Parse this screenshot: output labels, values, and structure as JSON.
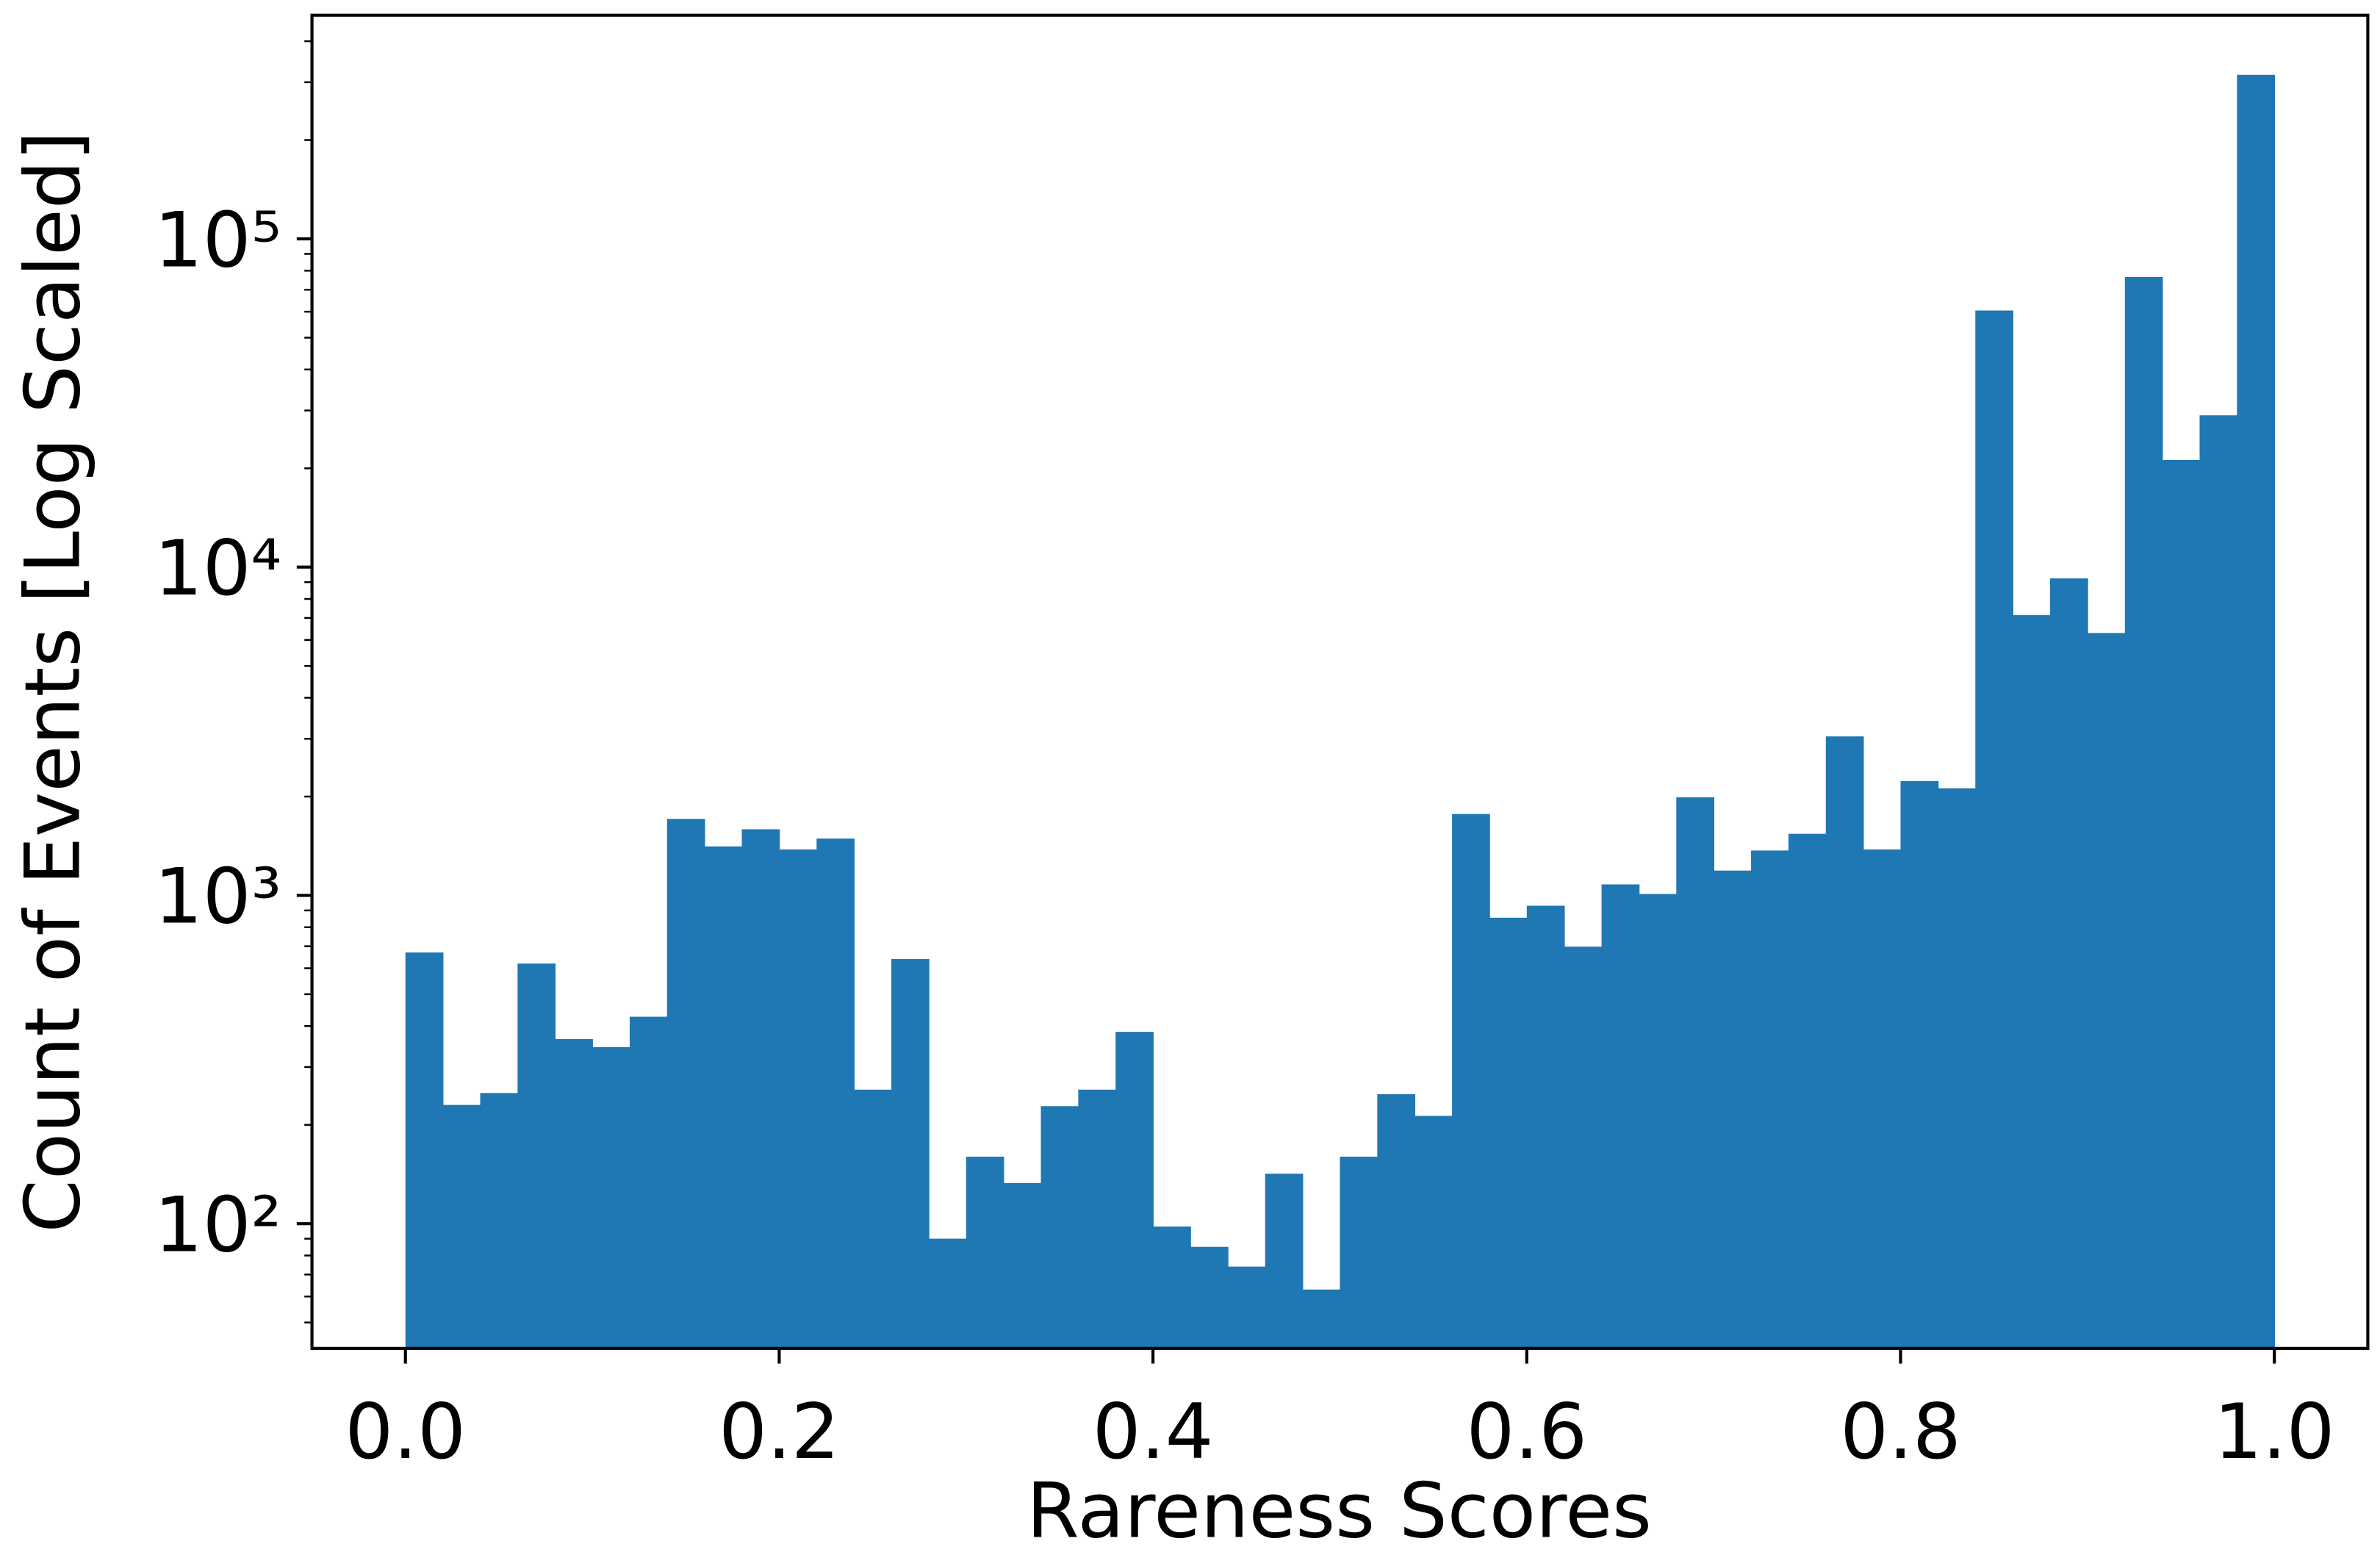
{
  "chart_data": {
    "type": "histogram",
    "x_label": "Rareness Scores",
    "y_label": "Count of Events [Log Scaled]",
    "log_y": true,
    "color": "#1f77b4",
    "bins": [
      0,
      0.02,
      0.04,
      0.06,
      0.08,
      0.1,
      0.12,
      0.14,
      0.16,
      0.18,
      0.2,
      0.22,
      0.24,
      0.26,
      0.28,
      0.3,
      0.32,
      0.34,
      0.36,
      0.38,
      0.4,
      0.42,
      0.44,
      0.46,
      0.48,
      0.5,
      0.52,
      0.54,
      0.56,
      0.58,
      0.6,
      0.62,
      0.64,
      0.66,
      0.68,
      0.7,
      0.72,
      0.74,
      0.76,
      0.78,
      0.8,
      0.82,
      0.84,
      0.86,
      0.88,
      0.9,
      0.92,
      0.94,
      0.96,
      0.98,
      1.0
    ],
    "counts": [
      670,
      230,
      250,
      620,
      365,
      345,
      427,
      1710,
      1410,
      1590,
      1380,
      1490,
      256,
      640,
      90,
      160,
      133,
      228,
      256,
      384,
      98,
      85,
      74,
      142,
      63,
      160,
      248,
      213,
      1770,
      855,
      930,
      698,
      1080,
      1010,
      1990,
      1190,
      1370,
      1540,
      3050,
      1380,
      2230,
      2120,
      60500,
      7140,
      9240,
      6300,
      76500,
      21200,
      29000,
      316000
    ],
    "xlim": [
      -0.05,
      1.05
    ],
    "ylim": [
      41.7,
      480000
    ],
    "xticks": [
      {
        "value": 0,
        "label": "0.0"
      },
      0.2,
      0.4,
      0.6,
      0.8,
      {
        "value": 1,
        "label": "1.0"
      }
    ],
    "yticks": [
      {
        "value": 100,
        "label": "10²"
      },
      {
        "value": 1000,
        "label": "10³"
      },
      {
        "value": 10000,
        "label": "10⁴"
      },
      {
        "value": 100000,
        "label": "10⁵"
      }
    ],
    "yminorticks": [
      50,
      60,
      70,
      80,
      90,
      200,
      300,
      400,
      500,
      600,
      700,
      800,
      900,
      2000,
      3000,
      4000,
      5000,
      6000,
      7000,
      8000,
      9000,
      20000,
      30000,
      40000,
      50000,
      60000,
      70000,
      80000,
      90000,
      200000,
      300000,
      400000
    ]
  }
}
